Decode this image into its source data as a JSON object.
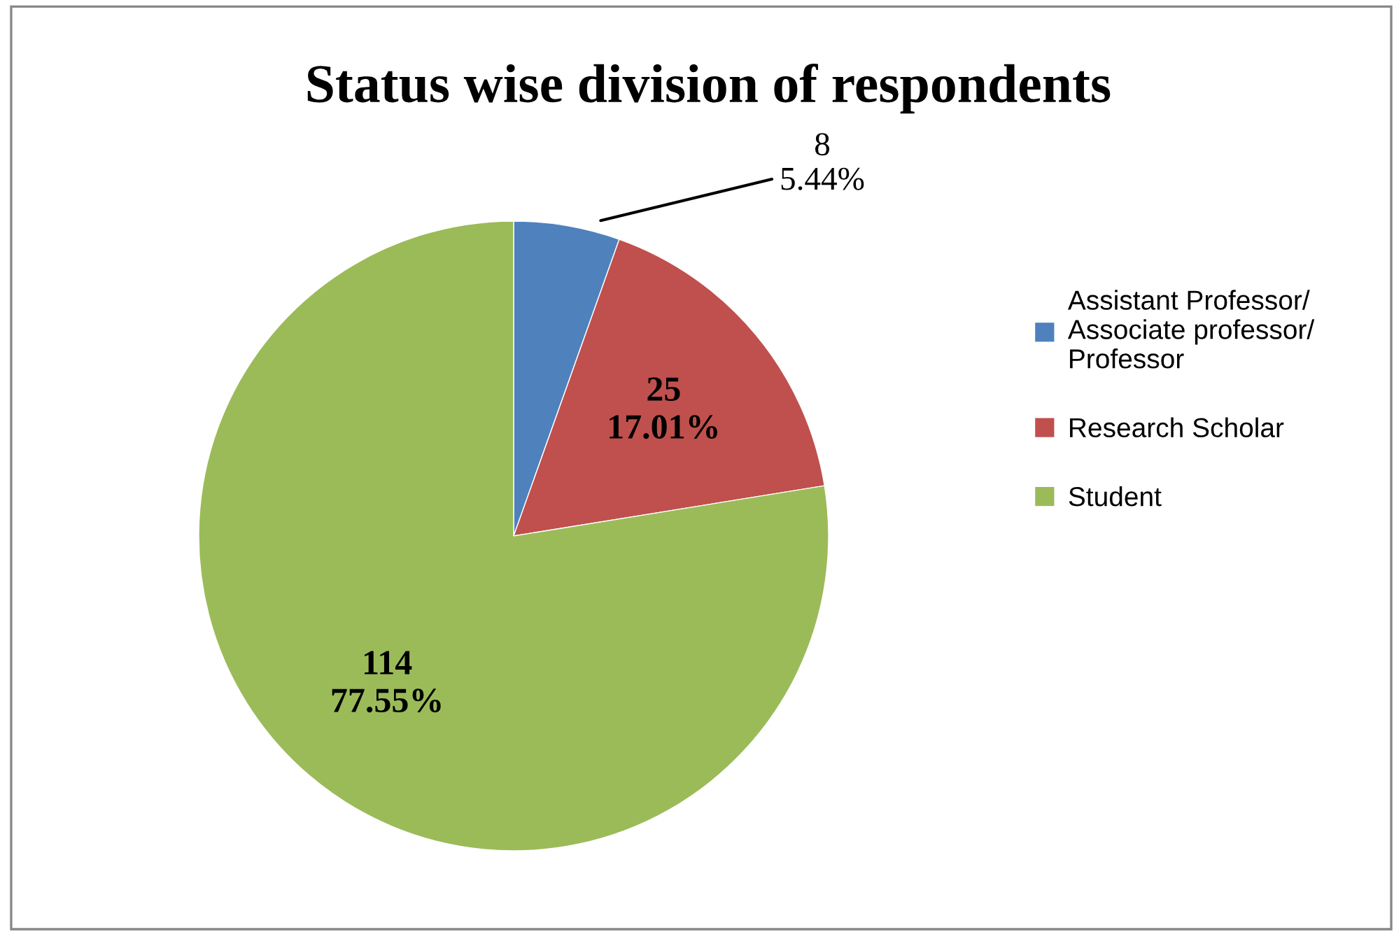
{
  "chart_data": {
    "type": "pie",
    "title": "Status wise division of respondents",
    "categories": [
      "Assistant Professor/ Associate professor/ Professor",
      "Research Scholar",
      "Student"
    ],
    "values": [
      8,
      25,
      114
    ],
    "colors": [
      "#4f81bd",
      "#c0504d",
      "#9bbb59"
    ],
    "value_labels": [
      "8\n5.44%",
      "25\n17.01%",
      "114\n77.55%"
    ],
    "legend": "right"
  }
}
